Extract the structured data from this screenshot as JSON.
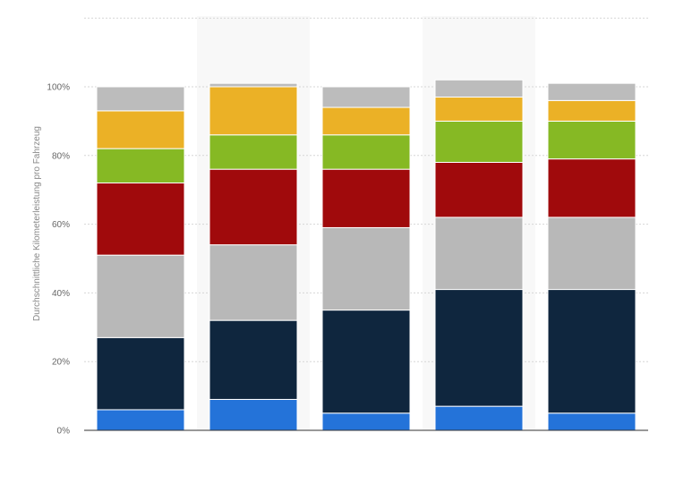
{
  "chart_data": {
    "type": "bar",
    "stacked": true,
    "ylabel": "Durchschnittliche Kilometerleistung pro Fahrzeug",
    "ylim": [
      0,
      100
    ],
    "yticks": [
      0,
      20,
      40,
      60,
      80,
      100
    ],
    "ytick_labels": [
      "0%",
      "20%",
      "40%",
      "60%",
      "80%",
      "100%"
    ],
    "grid": true,
    "legend": false,
    "categories": [
      "",
      "",
      "",
      "",
      ""
    ],
    "series": [
      {
        "color": "#2473d9",
        "values": [
          6,
          9,
          5,
          7,
          5
        ]
      },
      {
        "color": "#0f263e",
        "values": [
          21,
          23,
          30,
          34,
          36
        ]
      },
      {
        "color": "#b8b8b8",
        "values": [
          24,
          22,
          24,
          21,
          21
        ]
      },
      {
        "color": "#a00a0c",
        "values": [
          21,
          22,
          17,
          16,
          17
        ]
      },
      {
        "color": "#86b924",
        "values": [
          10,
          10,
          10,
          12,
          11
        ]
      },
      {
        "color": "#ebb126",
        "values": [
          11,
          14,
          8,
          7,
          6
        ]
      },
      {
        "color": "#bcbcbc",
        "values": [
          7,
          1,
          6,
          5,
          5
        ]
      }
    ]
  }
}
